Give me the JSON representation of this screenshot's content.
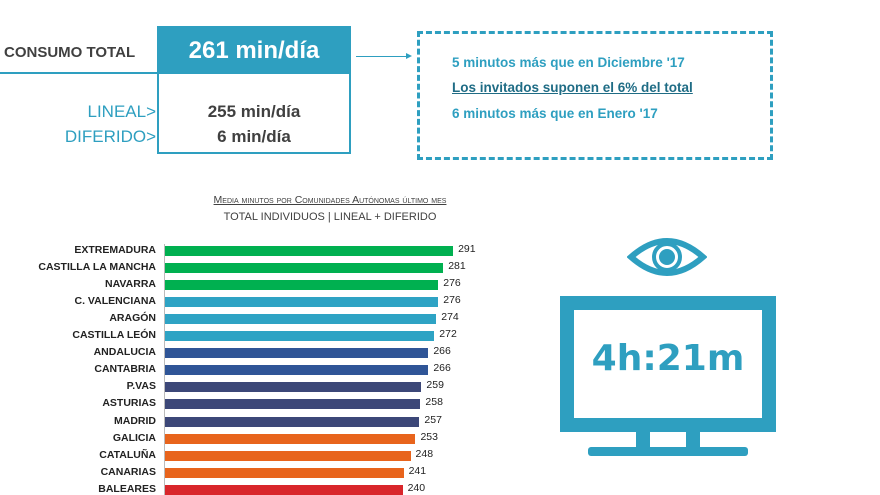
{
  "summary": {
    "total_label": "CONSUMO TOTAL",
    "total_value": "261 min/día",
    "lineal_label": "LINEAL>",
    "lineal_value": "255 min/día",
    "diferido_label": "DIFERIDO>",
    "diferido_value": "6 min/día"
  },
  "notes": [
    "5 minutos más que en Diciembre '17",
    "Los invitados suponen el 6% del total",
    "6 minutos más que en Enero '17"
  ],
  "tv": {
    "icon": "eye-icon",
    "display": "4h:21m",
    "color": "#2e9fc0"
  },
  "chart_data": {
    "type": "bar",
    "orientation": "horizontal",
    "title": "Media minutos por Comunidades Autónomas último mes",
    "subtitle": "TOTAL INDIVIDUOS  | LINEAL + DIFERIDO",
    "categories": [
      "EXTREMADURA",
      "CASTILLA LA MANCHA",
      "NAVARRA",
      "C. VALENCIANA",
      "ARAGÓN",
      "CASTILLA LEÓN",
      "ANDALUCIA",
      "CANTABRIA",
      "P.VAS",
      "ASTURIAS",
      "MADRID",
      "GALICIA",
      "CATALUÑA",
      "CANARIAS",
      "BALEARES"
    ],
    "values": [
      291,
      281,
      276,
      276,
      274,
      272,
      266,
      266,
      259,
      258,
      257,
      253,
      248,
      241,
      240
    ],
    "colors": [
      "#00b050",
      "#00b050",
      "#00b050",
      "#2ea3c4",
      "#2ea3c4",
      "#2ea3c4",
      "#2f5597",
      "#2f5597",
      "#3c4778",
      "#3c4778",
      "#3c4778",
      "#e8641c",
      "#e8641c",
      "#e8641c",
      "#d9262b"
    ],
    "data_labels": true,
    "grid": false
  }
}
